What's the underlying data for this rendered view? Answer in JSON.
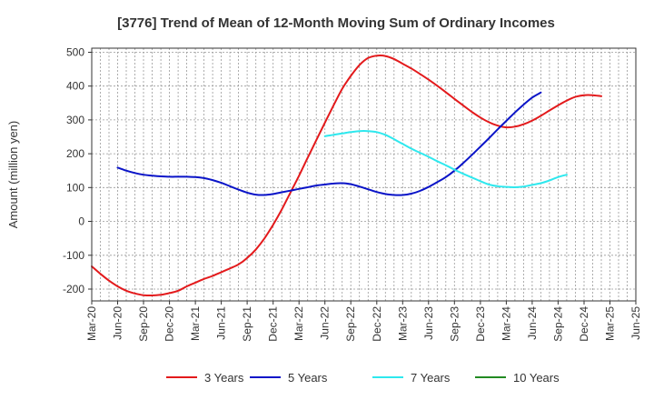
{
  "chart_data": {
    "type": "line",
    "title": "[3776]  Trend of Mean of 12-Month Moving Sum of Ordinary Incomes",
    "xlabel": "",
    "ylabel": "Amount (million yen)",
    "ylim": [
      -235,
      512
    ],
    "yticks": [
      -200,
      -100,
      0,
      100,
      200,
      300,
      400,
      500
    ],
    "xlim": [
      0,
      63
    ],
    "xticks": [
      {
        "label": "Mar-20",
        "x": 0
      },
      {
        "label": "Jun-20",
        "x": 3
      },
      {
        "label": "Sep-20",
        "x": 6
      },
      {
        "label": "Dec-20",
        "x": 9
      },
      {
        "label": "Mar-21",
        "x": 12
      },
      {
        "label": "Jun-21",
        "x": 15
      },
      {
        "label": "Sep-21",
        "x": 18
      },
      {
        "label": "Dec-21",
        "x": 21
      },
      {
        "label": "Mar-22",
        "x": 24
      },
      {
        "label": "Jun-22",
        "x": 27
      },
      {
        "label": "Sep-22",
        "x": 30
      },
      {
        "label": "Dec-22",
        "x": 33
      },
      {
        "label": "Mar-23",
        "x": 36
      },
      {
        "label": "Jun-23",
        "x": 39
      },
      {
        "label": "Sep-23",
        "x": 42
      },
      {
        "label": "Dec-23",
        "x": 45
      },
      {
        "label": "Mar-24",
        "x": 48
      },
      {
        "label": "Jun-24",
        "x": 51
      },
      {
        "label": "Sep-24",
        "x": 54
      },
      {
        "label": "Dec-24",
        "x": 57
      },
      {
        "label": "Mar-25",
        "x": 60
      },
      {
        "label": "Jun-25",
        "x": 63
      }
    ],
    "grid": true,
    "legend_position": "bottom",
    "series": [
      {
        "name": "3 Years",
        "color": "#e31a1c",
        "points": [
          [
            0,
            -133
          ],
          [
            1,
            -155
          ],
          [
            2,
            -175
          ],
          [
            3,
            -192
          ],
          [
            4,
            -205
          ],
          [
            5,
            -213
          ],
          [
            6,
            -218
          ],
          [
            7,
            -219
          ],
          [
            8,
            -217
          ],
          [
            9,
            -212
          ],
          [
            10,
            -205
          ],
          [
            11,
            -192
          ],
          [
            12,
            -181
          ],
          [
            13,
            -170
          ],
          [
            14,
            -161
          ],
          [
            15,
            -150
          ],
          [
            16,
            -139
          ],
          [
            17,
            -127
          ],
          [
            18,
            -108
          ],
          [
            19,
            -83
          ],
          [
            20,
            -50
          ],
          [
            21,
            -10
          ],
          [
            22,
            35
          ],
          [
            23,
            85
          ],
          [
            24,
            135
          ],
          [
            25,
            188
          ],
          [
            26,
            240
          ],
          [
            27,
            292
          ],
          [
            28,
            343
          ],
          [
            29,
            392
          ],
          [
            30,
            430
          ],
          [
            31,
            462
          ],
          [
            32,
            483
          ],
          [
            33,
            490
          ],
          [
            34,
            489
          ],
          [
            35,
            480
          ],
          [
            36,
            466
          ],
          [
            37,
            452
          ],
          [
            38,
            436
          ],
          [
            39,
            419
          ],
          [
            40,
            401
          ],
          [
            41,
            382
          ],
          [
            42,
            362
          ],
          [
            43,
            343
          ],
          [
            44,
            324
          ],
          [
            45,
            307
          ],
          [
            46,
            293
          ],
          [
            47,
            283
          ],
          [
            48,
            278
          ],
          [
            49,
            280
          ],
          [
            50,
            287
          ],
          [
            51,
            298
          ],
          [
            52,
            312
          ],
          [
            53,
            328
          ],
          [
            54,
            343
          ],
          [
            55,
            357
          ],
          [
            56,
            368
          ],
          [
            57,
            373
          ],
          [
            58,
            373
          ],
          [
            59,
            370
          ]
        ]
      },
      {
        "name": "5 Years",
        "color": "#0a14c8",
        "points": [
          [
            3,
            159
          ],
          [
            4,
            150
          ],
          [
            5,
            143
          ],
          [
            6,
            138
          ],
          [
            7,
            135
          ],
          [
            8,
            133
          ],
          [
            9,
            132
          ],
          [
            10,
            132
          ],
          [
            11,
            132
          ],
          [
            12,
            131
          ],
          [
            13,
            128
          ],
          [
            14,
            122
          ],
          [
            15,
            114
          ],
          [
            16,
            104
          ],
          [
            17,
            94
          ],
          [
            18,
            85
          ],
          [
            19,
            79
          ],
          [
            20,
            78
          ],
          [
            21,
            81
          ],
          [
            22,
            86
          ],
          [
            23,
            91
          ],
          [
            24,
            96
          ],
          [
            25,
            101
          ],
          [
            26,
            106
          ],
          [
            27,
            109
          ],
          [
            28,
            112
          ],
          [
            29,
            113
          ],
          [
            30,
            110
          ],
          [
            31,
            103
          ],
          [
            32,
            95
          ],
          [
            33,
            87
          ],
          [
            34,
            81
          ],
          [
            35,
            78
          ],
          [
            36,
            78
          ],
          [
            37,
            82
          ],
          [
            38,
            90
          ],
          [
            39,
            102
          ],
          [
            40,
            116
          ],
          [
            41,
            131
          ],
          [
            42,
            150
          ],
          [
            43,
            172
          ],
          [
            44,
            196
          ],
          [
            45,
            221
          ],
          [
            46,
            246
          ],
          [
            47,
            272
          ],
          [
            48,
            297
          ],
          [
            49,
            322
          ],
          [
            50,
            345
          ],
          [
            51,
            366
          ],
          [
            52,
            381
          ]
        ]
      },
      {
        "name": "7 Years",
        "color": "#2ee8ee",
        "points": [
          [
            27,
            252
          ],
          [
            28,
            256
          ],
          [
            29,
            260
          ],
          [
            30,
            264
          ],
          [
            31,
            267
          ],
          [
            32,
            267
          ],
          [
            33,
            264
          ],
          [
            34,
            256
          ],
          [
            35,
            243
          ],
          [
            36,
            229
          ],
          [
            37,
            215
          ],
          [
            38,
            203
          ],
          [
            39,
            191
          ],
          [
            40,
            178
          ],
          [
            41,
            166
          ],
          [
            42,
            153
          ],
          [
            43,
            141
          ],
          [
            44,
            130
          ],
          [
            45,
            119
          ],
          [
            46,
            109
          ],
          [
            47,
            104
          ],
          [
            48,
            102
          ],
          [
            49,
            101
          ],
          [
            50,
            103
          ],
          [
            51,
            108
          ],
          [
            52,
            113
          ],
          [
            53,
            121
          ],
          [
            54,
            131
          ],
          [
            55,
            138
          ]
        ]
      },
      {
        "name": "10 Years",
        "color": "#228b22",
        "points": []
      }
    ]
  }
}
